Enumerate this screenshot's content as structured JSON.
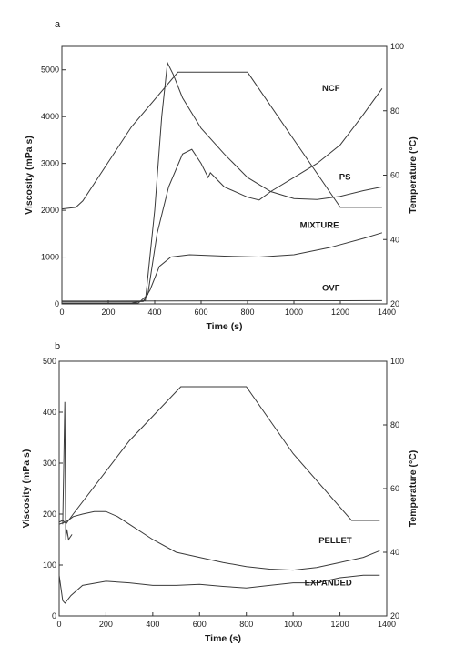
{
  "chart_data": [
    {
      "type": "line",
      "panel_label": "a",
      "xlabel": "Time (s)",
      "ylabel_left": "Viscosity (mPa s)",
      "ylabel_right": "Temperature (°C)",
      "xlim": [
        0,
        1400
      ],
      "ylim_left": [
        0,
        5500
      ],
      "ylim_right": [
        20,
        100
      ],
      "x_ticks": [
        "0",
        "200",
        "400",
        "600",
        "800",
        "1000",
        "1200",
        "1400"
      ],
      "y_left_ticks": [
        "0",
        "1000",
        "2000",
        "3000",
        "4000",
        "5000"
      ],
      "y_right_ticks": [
        "20",
        "40",
        "60",
        "80",
        "100"
      ],
      "grid": false,
      "series": [
        {
          "name": "TEMPERATURE",
          "axis": "right",
          "label_x": 880,
          "label_y": 4930,
          "points": [
            [
              0,
              49.5
            ],
            [
              60,
              50
            ],
            [
              90,
              52
            ],
            [
              300,
              75
            ],
            [
              500,
              92
            ],
            [
              800,
              92
            ],
            [
              1000,
              71
            ],
            [
              1200,
              50
            ],
            [
              1380,
              50
            ]
          ]
        },
        {
          "name": "NCF",
          "axis": "left",
          "label_x": 1160,
          "label_y": 4550,
          "points": [
            [
              0,
              20
            ],
            [
              300,
              20
            ],
            [
              360,
              80
            ],
            [
              400,
              2000
            ],
            [
              430,
              4000
            ],
            [
              455,
              5150
            ],
            [
              480,
              4900
            ],
            [
              520,
              4400
            ],
            [
              600,
              3750
            ],
            [
              700,
              3200
            ],
            [
              800,
              2700
            ],
            [
              900,
              2400
            ],
            [
              1000,
              2250
            ],
            [
              1100,
              2230
            ],
            [
              1200,
              2300
            ],
            [
              1300,
              2420
            ],
            [
              1380,
              2500
            ]
          ]
        },
        {
          "name": "PS",
          "axis": "left",
          "label_x": 1220,
          "label_y": 2650,
          "points": [
            [
              0,
              20
            ],
            [
              330,
              20
            ],
            [
              370,
              200
            ],
            [
              410,
              1500
            ],
            [
              460,
              2500
            ],
            [
              520,
              3200
            ],
            [
              560,
              3300
            ],
            [
              600,
              3000
            ],
            [
              630,
              2700
            ],
            [
              640,
              2800
            ],
            [
              700,
              2500
            ],
            [
              800,
              2280
            ],
            [
              850,
              2220
            ],
            [
              900,
              2400
            ],
            [
              1000,
              2700
            ],
            [
              1100,
              3000
            ],
            [
              1200,
              3400
            ],
            [
              1300,
              4050
            ],
            [
              1380,
              4600
            ]
          ]
        },
        {
          "name": "MIXTURE",
          "axis": "left",
          "label_x": 1110,
          "label_y": 1620,
          "points": [
            [
              0,
              50
            ],
            [
              350,
              50
            ],
            [
              380,
              300
            ],
            [
              420,
              800
            ],
            [
              470,
              1000
            ],
            [
              550,
              1050
            ],
            [
              700,
              1020
            ],
            [
              850,
              1000
            ],
            [
              1000,
              1050
            ],
            [
              1150,
              1200
            ],
            [
              1300,
              1400
            ],
            [
              1380,
              1520
            ]
          ]
        },
        {
          "name": "OVF",
          "axis": "left",
          "label_x": 1160,
          "label_y": 280,
          "points": [
            [
              0,
              60
            ],
            [
              1380,
              70
            ]
          ]
        }
      ]
    },
    {
      "type": "line",
      "panel_label": "b",
      "xlabel": "Time (s)",
      "ylabel_left": "Viscosity (mPa s)",
      "ylabel_right": "Temperature (°C)",
      "xlim": [
        0,
        1400
      ],
      "ylim_left": [
        0,
        500
      ],
      "ylim_right": [
        20,
        100
      ],
      "x_ticks": [
        "0",
        "200",
        "400",
        "600",
        "800",
        "1000",
        "1200",
        "1400"
      ],
      "y_left_ticks": [
        "0",
        "100",
        "200",
        "300",
        "400",
        "500"
      ],
      "y_right_ticks": [
        "20",
        "40",
        "60",
        "80",
        "100"
      ],
      "grid": false,
      "series": [
        {
          "name": "TEMPERATURE",
          "axis": "right",
          "label_x": 900,
          "label_y": 450,
          "points": [
            [
              0,
              49.5
            ],
            [
              15,
              50
            ],
            [
              30,
              49
            ],
            [
              40,
              50
            ],
            [
              60,
              52
            ],
            [
              300,
              75
            ],
            [
              520,
              92
            ],
            [
              800,
              92
            ],
            [
              1000,
              71
            ],
            [
              1250,
              50
            ],
            [
              1370,
              50
            ]
          ]
        },
        {
          "name": "PELLET",
          "axis": "left",
          "label_x": 1180,
          "label_y": 143,
          "points": [
            [
              0,
              180
            ],
            [
              30,
              185
            ],
            [
              60,
              195
            ],
            [
              100,
              200
            ],
            [
              150,
              205
            ],
            [
              200,
              205
            ],
            [
              250,
              195
            ],
            [
              300,
              180
            ],
            [
              400,
              150
            ],
            [
              500,
              125
            ],
            [
              600,
              115
            ],
            [
              700,
              105
            ],
            [
              800,
              97
            ],
            [
              900,
              92
            ],
            [
              1000,
              90
            ],
            [
              1100,
              95
            ],
            [
              1200,
              105
            ],
            [
              1300,
              115
            ],
            [
              1370,
              128
            ]
          ]
        },
        {
          "name": "EXPANDED",
          "axis": "left",
          "label_x": 1150,
          "label_y": 60,
          "points": [
            [
              0,
              80
            ],
            [
              15,
              30
            ],
            [
              25,
              25
            ],
            [
              50,
              40
            ],
            [
              100,
              60
            ],
            [
              200,
              68
            ],
            [
              300,
              65
            ],
            [
              400,
              60
            ],
            [
              500,
              60
            ],
            [
              600,
              62
            ],
            [
              700,
              58
            ],
            [
              800,
              55
            ],
            [
              900,
              60
            ],
            [
              1000,
              65
            ],
            [
              1100,
              65
            ],
            [
              1200,
              75
            ],
            [
              1300,
              80
            ],
            [
              1370,
              80
            ]
          ]
        },
        {
          "name": "",
          "axis": "left",
          "label_x": null,
          "label_y": null,
          "points": [
            [
              15,
              180
            ],
            [
              20,
              300
            ],
            [
              24,
              420
            ],
            [
              28,
              150
            ],
            [
              33,
              170
            ],
            [
              40,
              150
            ],
            [
              55,
              160
            ]
          ]
        }
      ]
    }
  ]
}
